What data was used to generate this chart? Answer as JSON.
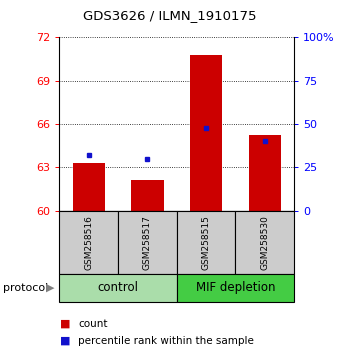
{
  "title": "GDS3626 / ILMN_1910175",
  "samples": [
    "GSM258516",
    "GSM258517",
    "GSM258515",
    "GSM258530"
  ],
  "bar_color": "#CC0000",
  "dot_color": "#1111CC",
  "ylim_left": [
    60,
    72
  ],
  "yticks_left": [
    60,
    63,
    66,
    69,
    72
  ],
  "ylim_right": [
    0,
    100
  ],
  "yticks_right": [
    0,
    25,
    50,
    75,
    100
  ],
  "count_values": [
    63.3,
    62.15,
    70.75,
    65.2
  ],
  "percentile_values": [
    63.85,
    63.55,
    65.75,
    64.85
  ],
  "bg_color": "#ffffff",
  "sample_area_color": "#cccccc",
  "control_color": "#aaddaa",
  "mif_color": "#44cc44",
  "label_count": "count",
  "label_percentile": "percentile rank within the sample",
  "protocol_label": "protocol",
  "title_fontsize": 9.5,
  "axis_fontsize": 8,
  "sample_fontsize": 6.5,
  "group_fontsize": 8.5,
  "legend_fontsize": 7.5
}
